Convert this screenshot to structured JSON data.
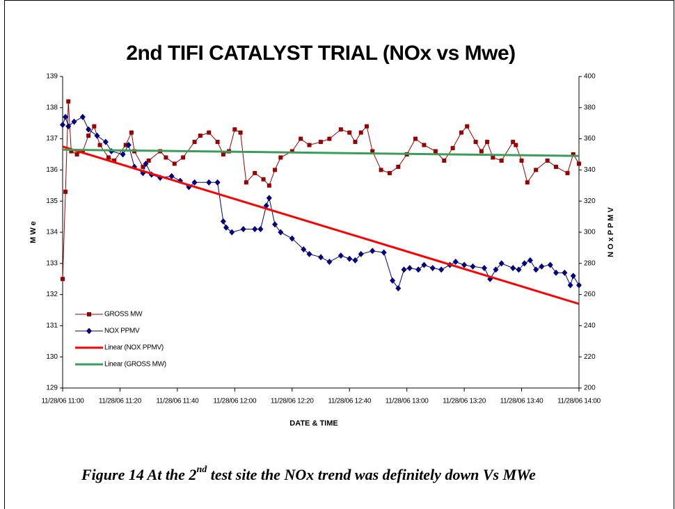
{
  "chart_data": {
    "type": "line",
    "title": "2nd TIFI CATALYST TRIAL (NOx vs Mwe)",
    "x_label": "DATE & TIME",
    "y_label": "M W e",
    "y2_label": "N O x P P M V",
    "caption": {
      "before": "Figure 14 At the 2",
      "sup": "nd",
      "after": " test site the NOx trend was definitely down Vs MWe"
    },
    "xlim": [
      "11/28/06 11:00",
      "11/28/06 14:00"
    ],
    "xticks": [
      "11/28/06 11:00",
      "11/28/06 11:20",
      "11/28/06 11:40",
      "11/28/06 12:00",
      "11/28/06 12:20",
      "11/28/06 12:40",
      "11/28/06 13:00",
      "11/28/06 13:20",
      "11/28/06 13:40",
      "11/28/06 14:00"
    ],
    "ylim": [
      129,
      139
    ],
    "yticks": [
      129,
      130,
      131,
      132,
      133,
      134,
      135,
      136,
      137,
      138,
      139
    ],
    "y2lim": [
      200,
      400
    ],
    "y2ticks": [
      200,
      220,
      240,
      260,
      280,
      300,
      320,
      340,
      360,
      380,
      400
    ],
    "series": [
      {
        "name": "GROSS MW",
        "color": "#990000",
        "marker": "square",
        "line_width": 1,
        "x": [
          "11/28/06 11:00",
          "11/28/06 11:01",
          "11/28/06 11:02",
          "11/28/06 11:03",
          "11/28/06 11:05",
          "11/28/06 11:07",
          "11/28/06 11:09",
          "11/28/06 11:11",
          "11/28/06 11:13",
          "11/28/06 11:16",
          "11/28/06 11:18",
          "11/28/06 11:22",
          "11/28/06 11:24",
          "11/28/06 11:25",
          "11/28/06 11:28",
          "11/28/06 11:30",
          "11/28/06 11:34",
          "11/28/06 11:36",
          "11/28/06 11:39",
          "11/28/06 11:42",
          "11/28/06 11:46",
          "11/28/06 11:48",
          "11/28/06 11:51",
          "11/28/06 11:54",
          "11/28/06 11:56",
          "11/28/06 11:58",
          "11/28/06 12:00",
          "11/28/06 12:02",
          "11/28/06 12:04",
          "11/28/06 12:07",
          "11/28/06 12:10",
          "11/28/06 12:12",
          "11/28/06 12:14",
          "11/28/06 12:16",
          "11/28/06 12:20",
          "11/28/06 12:23",
          "11/28/06 12:26",
          "11/28/06 12:30",
          "11/28/06 12:33",
          "11/28/06 12:37",
          "11/28/06 12:40",
          "11/28/06 12:42",
          "11/28/06 12:44",
          "11/28/06 12:46",
          "11/28/06 12:48",
          "11/28/06 12:51",
          "11/28/06 12:54",
          "11/28/06 12:57",
          "11/28/06 13:00",
          "11/28/06 13:03",
          "11/28/06 13:06",
          "11/28/06 13:10",
          "11/28/06 13:13",
          "11/28/06 13:16",
          "11/28/06 13:19",
          "11/28/06 13:21",
          "11/28/06 13:24",
          "11/28/06 13:26",
          "11/28/06 13:28",
          "11/28/06 13:30",
          "11/28/06 13:33",
          "11/28/06 13:37",
          "11/28/06 13:38",
          "11/28/06 13:40",
          "11/28/06 13:42",
          "11/28/06 13:45",
          "11/28/06 13:49",
          "11/28/06 13:52",
          "11/28/06 13:56",
          "11/28/06 13:58",
          "11/28/06 14:00"
        ],
        "values": [
          132.5,
          135.3,
          138.2,
          136.6,
          136.5,
          136.6,
          137.1,
          137.4,
          136.8,
          136.4,
          136.3,
          136.8,
          137.2,
          136.6,
          136.1,
          136.3,
          136.6,
          136.4,
          136.2,
          136.4,
          136.9,
          137.1,
          137.2,
          136.9,
          136.5,
          136.6,
          137.3,
          137.2,
          135.6,
          135.9,
          135.7,
          135.5,
          136.0,
          136.4,
          136.6,
          137.0,
          136.8,
          136.9,
          137.0,
          137.3,
          137.2,
          136.9,
          137.2,
          137.4,
          136.6,
          136.0,
          135.9,
          136.1,
          136.5,
          137.0,
          136.8,
          136.6,
          136.3,
          136.7,
          137.2,
          137.4,
          136.9,
          136.6,
          136.9,
          136.4,
          136.3,
          136.9,
          136.8,
          136.3,
          135.6,
          136.0,
          136.3,
          136.1,
          135.9,
          136.5,
          136.2
        ]
      },
      {
        "name": "NOX PPMV",
        "color": "#000080",
        "marker": "diamond",
        "line_width": 1,
        "axis": "y2",
        "x": [
          "11/28/06 11:00",
          "11/28/06 11:01",
          "11/28/06 11:02",
          "11/28/06 11:04",
          "11/28/06 11:07",
          "11/28/06 11:09",
          "11/28/06 11:12",
          "11/28/06 11:15",
          "11/28/06 11:17",
          "11/28/06 11:21",
          "11/28/06 11:23",
          "11/28/06 11:25",
          "11/28/06 11:28",
          "11/28/06 11:29",
          "11/28/06 11:31",
          "11/28/06 11:34",
          "11/28/06 11:38",
          "11/28/06 11:41",
          "11/28/06 11:44",
          "11/28/06 11:46",
          "11/28/06 11:51",
          "11/28/06 11:54",
          "11/28/06 11:56",
          "11/28/06 11:57",
          "11/28/06 11:59",
          "11/28/06 12:03",
          "11/28/06 12:07",
          "11/28/06 12:09",
          "11/28/06 12:11",
          "11/28/06 12:12",
          "11/28/06 12:14",
          "11/28/06 12:16",
          "11/28/06 12:20",
          "11/28/06 12:24",
          "11/28/06 12:26",
          "11/28/06 12:30",
          "11/28/06 12:33",
          "11/28/06 12:37",
          "11/28/06 12:40",
          "11/28/06 12:42",
          "11/28/06 12:44",
          "11/28/06 12:48",
          "11/28/06 12:52",
          "11/28/06 12:55",
          "11/28/06 12:57",
          "11/28/06 12:59",
          "11/28/06 13:01",
          "11/28/06 13:04",
          "11/28/06 13:06",
          "11/28/06 13:09",
          "11/28/06 13:12",
          "11/28/06 13:15",
          "11/28/06 13:17",
          "11/28/06 13:20",
          "11/28/06 13:23",
          "11/28/06 13:27",
          "11/28/06 13:29",
          "11/28/06 13:31",
          "11/28/06 13:33",
          "11/28/06 13:37",
          "11/28/06 13:39",
          "11/28/06 13:41",
          "11/28/06 13:43",
          "11/28/06 13:45",
          "11/28/06 13:47",
          "11/28/06 13:50",
          "11/28/06 13:52",
          "11/28/06 13:55",
          "11/28/06 13:57",
          "11/28/06 13:58",
          "11/28/06 14:00"
        ],
        "values": [
          369,
          374,
          368,
          371,
          374,
          366,
          362,
          358,
          352,
          350,
          356,
          342,
          338,
          344,
          337,
          335,
          336,
          333,
          329,
          332,
          332,
          332,
          307,
          303,
          300,
          302,
          302,
          302,
          317,
          322,
          305,
          300,
          296,
          289,
          286,
          284,
          281,
          285,
          283,
          282,
          286,
          288,
          287,
          269,
          264,
          276,
          277,
          276,
          279,
          277,
          276,
          279,
          281,
          279,
          278,
          277,
          270,
          276,
          280,
          277,
          276,
          280,
          282,
          276,
          278,
          279,
          274,
          274,
          266,
          272,
          266
        ]
      },
      {
        "name": "Linear (NOX PPMV)",
        "color": "#ff0000",
        "line_width": 3,
        "axis": "y2",
        "x": [
          "11/28/06 11:00",
          "11/28/06 14:00"
        ],
        "values": [
          355,
          254
        ]
      },
      {
        "name": "Linear (GROSS MW)",
        "color": "#3a9e5a",
        "line_width": 3,
        "x": [
          "11/28/06 11:00",
          "11/28/06 14:00"
        ],
        "values": [
          136.65,
          136.45
        ]
      }
    ]
  }
}
